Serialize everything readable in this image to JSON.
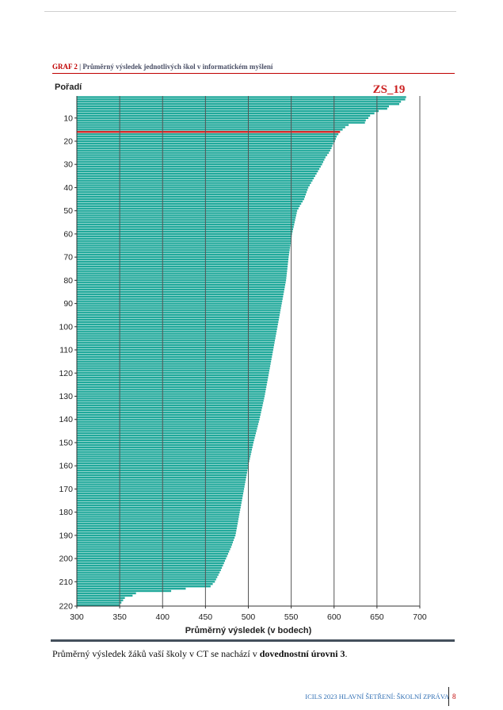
{
  "page": {
    "caption_prefix": "GRAF 2",
    "caption_text": " | Průměrný výsledek jednotlivých škol v informatickém myšlení",
    "note_before": "Průměrný výsledek žáků vaší školy v CT se nachází v ",
    "note_bold": "dovednostní úrovni 3",
    "note_after": ".",
    "footer_text": "ICILS 2023 HLAVNÍ ŠETŘENÍ: ŠKOLNÍ ZPRÁVA",
    "page_number": "8"
  },
  "chart_data": {
    "type": "bar",
    "orientation": "horizontal",
    "xlabel": "Průměrný výsledek (v bodech)",
    "ylabel": "Pořadí",
    "xlim": [
      300,
      700
    ],
    "x_ticks": [
      300,
      350,
      400,
      450,
      500,
      550,
      600,
      650,
      700
    ],
    "ylim": [
      1,
      220
    ],
    "y_ticks": [
      10,
      20,
      30,
      40,
      50,
      60,
      70,
      80,
      90,
      100,
      110,
      120,
      130,
      140,
      150,
      160,
      170,
      180,
      190,
      200,
      210,
      220
    ],
    "grid": "vertical",
    "bar_color": "#21a99b",
    "highlight_color": "#cc2222",
    "highlight_label": "ZS_19",
    "highlight_rank": 16,
    "highlight_value": 607,
    "anchor_points": [
      [
        1,
        684
      ],
      [
        2,
        683
      ],
      [
        3,
        678
      ],
      [
        4,
        676
      ],
      [
        5,
        664
      ],
      [
        6,
        662
      ],
      [
        7,
        652
      ],
      [
        8,
        647
      ],
      [
        9,
        642
      ],
      [
        10,
        640
      ],
      [
        11,
        637
      ],
      [
        12,
        636
      ],
      [
        13,
        617
      ],
      [
        14,
        613
      ],
      [
        15,
        610
      ],
      [
        17,
        605
      ],
      [
        18,
        603
      ],
      [
        19,
        602
      ],
      [
        20,
        601
      ],
      [
        21,
        599
      ],
      [
        23,
        597
      ],
      [
        25,
        594
      ],
      [
        27,
        590
      ],
      [
        30,
        586
      ],
      [
        35,
        578
      ],
      [
        40,
        570
      ],
      [
        45,
        565
      ],
      [
        48,
        560
      ],
      [
        50,
        557
      ],
      [
        55,
        554
      ],
      [
        60,
        551
      ],
      [
        65,
        549
      ],
      [
        70,
        547
      ],
      [
        80,
        544
      ],
      [
        90,
        539
      ],
      [
        100,
        534
      ],
      [
        110,
        529
      ],
      [
        120,
        524
      ],
      [
        130,
        519
      ],
      [
        140,
        513
      ],
      [
        150,
        506
      ],
      [
        160,
        500
      ],
      [
        170,
        495
      ],
      [
        180,
        490
      ],
      [
        190,
        485
      ],
      [
        195,
        480
      ],
      [
        200,
        474
      ],
      [
        205,
        468
      ],
      [
        210,
        461
      ],
      [
        212,
        456
      ],
      [
        213,
        427
      ],
      [
        214,
        410
      ],
      [
        215,
        369
      ],
      [
        216,
        365
      ],
      [
        217,
        356
      ],
      [
        218,
        354
      ],
      [
        220,
        350
      ]
    ]
  }
}
